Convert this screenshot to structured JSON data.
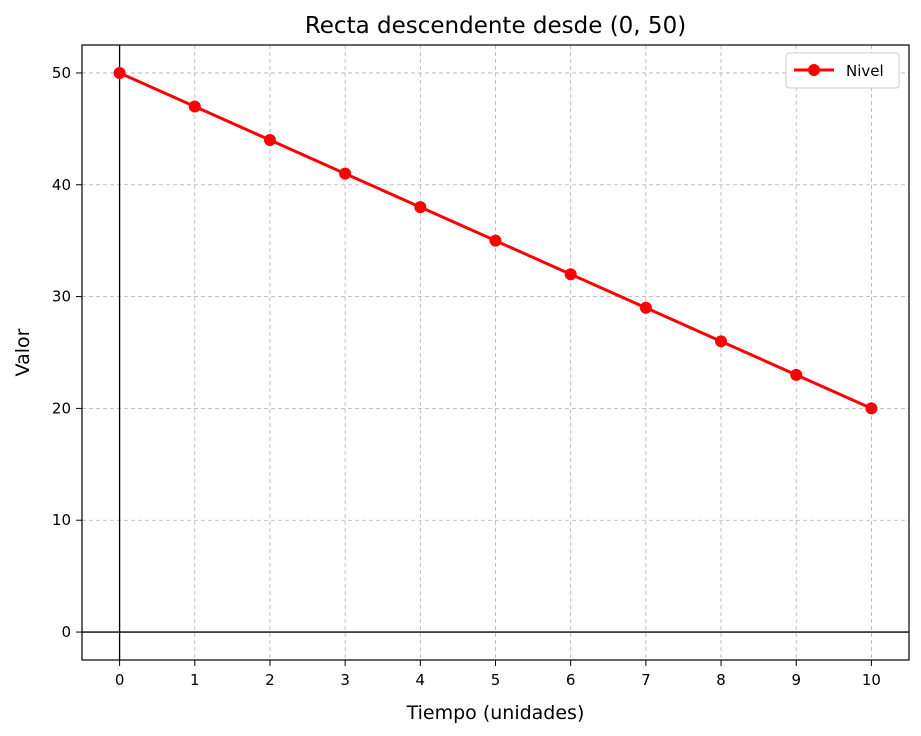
{
  "chart_data": {
    "type": "line",
    "title": "Recta descendente desde (0, 50)",
    "xlabel": "Tiempo (unidades)",
    "ylabel": "Valor",
    "xlim": [
      -0.5,
      10.5
    ],
    "ylim": [
      -2.5,
      52.5
    ],
    "x_ticks": [
      0,
      1,
      2,
      3,
      4,
      5,
      6,
      7,
      8,
      9,
      10
    ],
    "y_ticks": [
      0,
      10,
      20,
      30,
      40,
      50
    ],
    "grid": true,
    "legend_position": "top-right",
    "series": [
      {
        "name": "Nivel",
        "color": "#ff0000",
        "marker": "circle",
        "x": [
          0,
          1,
          2,
          3,
          4,
          5,
          6,
          7,
          8,
          9,
          10
        ],
        "y": [
          50,
          47,
          44,
          41,
          38,
          35,
          32,
          29,
          26,
          23,
          20
        ]
      }
    ],
    "reference_lines": {
      "x0": true,
      "y0": true
    }
  }
}
